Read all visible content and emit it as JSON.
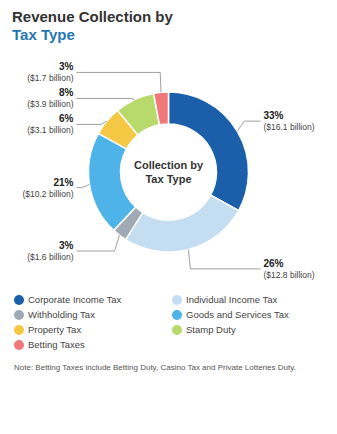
{
  "chart_data": {
    "type": "pie",
    "title": "Revenue Collection by",
    "subtitle": "Tax Type",
    "annotations": [
      "Collection by",
      "Tax Type"
    ],
    "categories": [
      "Corporate Income Tax",
      "Individual Income Tax",
      "Withholding Tax",
      "Goods and Services Tax",
      "Property Tax",
      "Stamp Duty",
      "Betting Taxes"
    ],
    "values": [
      33,
      26,
      3,
      21,
      6,
      8,
      3
    ],
    "value_labels": [
      "33%",
      "26%",
      "3%",
      "21%",
      "6%",
      "8%",
      "3%"
    ],
    "amount_labels": [
      "($16.1 billion)",
      "($12.8 billion)",
      "($1.6 billion)",
      "($10.2 billion)",
      "($3.1 billion)",
      "($3.9 billion)",
      "($1.7 billion)"
    ],
    "colors": [
      "#1b5faa",
      "#c5ddf0",
      "#9faab5",
      "#4db3e8",
      "#f4c842",
      "#b8d96b",
      "#f07878"
    ],
    "data_labels": true,
    "legend": "bottom",
    "note": "Note: Betting Taxes include Betting Duty, Casino Tax and Private Lotteries Duty."
  }
}
